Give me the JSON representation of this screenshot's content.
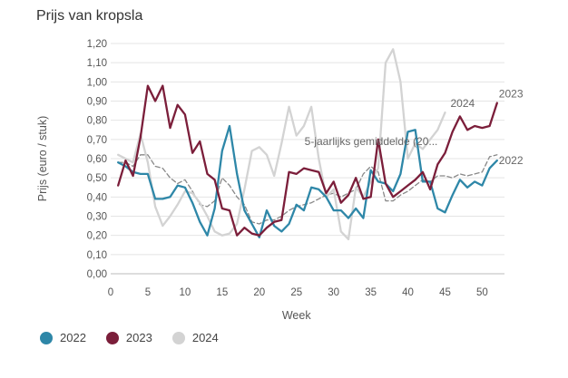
{
  "title": "Prijs van kropsla",
  "chart_data": {
    "type": "line",
    "title": "Prijs van kropsla",
    "xlabel": "Week",
    "ylabel": "Prijs (euro / stuk)",
    "xlim": [
      0,
      53
    ],
    "ylim": [
      0,
      1.2
    ],
    "xticks": [
      0,
      5,
      10,
      15,
      20,
      25,
      30,
      35,
      40,
      45,
      50
    ],
    "yticks": [
      "0,00",
      "0,10",
      "0,20",
      "0,30",
      "0,40",
      "0,50",
      "0,60",
      "0,70",
      "0,80",
      "0,90",
      "1,00",
      "1,10",
      "1,20"
    ],
    "grid": true,
    "legend_position": "bottom-left",
    "series": [
      {
        "name": "2022",
        "color": "#2e87a8",
        "dash": false,
        "x": [
          1,
          2,
          3,
          4,
          5,
          6,
          7,
          8,
          9,
          10,
          11,
          12,
          13,
          14,
          15,
          16,
          17,
          18,
          19,
          20,
          21,
          22,
          23,
          24,
          25,
          26,
          27,
          28,
          29,
          30,
          31,
          32,
          33,
          34,
          35,
          36,
          37,
          38,
          39,
          40,
          41,
          42,
          43,
          44,
          45,
          46,
          47,
          48,
          49,
          50,
          51,
          52
        ],
        "y": [
          0.58,
          0.56,
          0.53,
          0.52,
          0.52,
          0.39,
          0.39,
          0.4,
          0.46,
          0.45,
          0.37,
          0.27,
          0.2,
          0.34,
          0.64,
          0.77,
          0.52,
          0.33,
          0.26,
          0.19,
          0.33,
          0.25,
          0.22,
          0.26,
          0.36,
          0.33,
          0.45,
          0.44,
          0.4,
          0.33,
          0.33,
          0.29,
          0.34,
          0.29,
          0.54,
          0.48,
          0.47,
          0.43,
          0.52,
          0.74,
          0.75,
          0.48,
          0.48,
          0.34,
          0.32,
          0.41,
          0.49,
          0.45,
          0.48,
          0.46,
          0.55,
          0.59
        ]
      },
      {
        "name": "2023",
        "color": "#7b1e3a",
        "dash": false,
        "x": [
          1,
          2,
          3,
          4,
          5,
          6,
          7,
          8,
          9,
          10,
          11,
          12,
          13,
          14,
          15,
          16,
          17,
          18,
          19,
          20,
          21,
          22,
          23,
          24,
          25,
          26,
          27,
          28,
          29,
          30,
          31,
          32,
          33,
          34,
          35,
          36,
          37,
          38,
          39,
          40,
          41,
          42,
          43,
          44,
          45,
          46,
          47,
          48,
          49,
          50,
          51,
          52
        ],
        "y": [
          0.46,
          0.59,
          0.51,
          0.71,
          0.98,
          0.9,
          0.98,
          0.76,
          0.88,
          0.83,
          0.63,
          0.69,
          0.52,
          0.49,
          0.34,
          0.33,
          0.2,
          0.24,
          0.21,
          0.2,
          0.24,
          0.27,
          0.28,
          0.53,
          0.52,
          0.55,
          0.54,
          0.53,
          0.42,
          0.48,
          0.37,
          0.41,
          0.5,
          0.39,
          0.4,
          0.7,
          0.47,
          0.4,
          0.43,
          0.46,
          0.49,
          0.53,
          0.44,
          0.57,
          0.63,
          0.74,
          0.82,
          0.75,
          0.77,
          0.76,
          0.77,
          0.89
        ]
      },
      {
        "name": "2024",
        "color": "#d3d3d3",
        "dash": false,
        "end_label": "2024",
        "x": [
          1,
          2,
          3,
          4,
          5,
          6,
          7,
          8,
          9,
          10,
          11,
          12,
          13,
          14,
          15,
          16,
          17,
          18,
          19,
          20,
          21,
          22,
          23,
          24,
          25,
          26,
          27,
          28,
          29,
          30,
          31,
          32,
          33,
          34,
          35,
          36,
          37,
          38,
          39,
          40,
          41,
          42,
          43,
          44,
          45
        ],
        "y": [
          0.62,
          0.6,
          0.58,
          0.73,
          0.58,
          0.35,
          0.25,
          0.3,
          0.36,
          0.43,
          0.42,
          0.37,
          0.3,
          0.22,
          0.2,
          0.21,
          0.26,
          0.44,
          0.64,
          0.66,
          0.62,
          0.51,
          0.68,
          0.87,
          0.72,
          0.77,
          0.87,
          0.6,
          0.4,
          0.44,
          0.22,
          0.18,
          0.45,
          0.4,
          0.48,
          0.55,
          1.1,
          1.17,
          1.0,
          0.6,
          0.68,
          0.65,
          0.7,
          0.75,
          0.84
        ]
      },
      {
        "name": "5-jaarlijks gemiddelde (20...",
        "color": "#888888",
        "dash": true,
        "x": [
          1,
          2,
          3,
          4,
          5,
          6,
          7,
          8,
          9,
          10,
          11,
          12,
          13,
          14,
          15,
          16,
          17,
          18,
          19,
          20,
          21,
          22,
          23,
          24,
          25,
          26,
          27,
          28,
          29,
          30,
          31,
          32,
          33,
          34,
          35,
          36,
          37,
          38,
          39,
          40,
          41,
          42,
          43,
          44,
          45,
          46,
          47,
          48,
          49,
          50,
          51,
          52
        ],
        "y": [
          0.58,
          0.58,
          0.56,
          0.62,
          0.62,
          0.56,
          0.55,
          0.5,
          0.47,
          0.49,
          0.43,
          0.36,
          0.35,
          0.38,
          0.5,
          0.46,
          0.4,
          0.36,
          0.27,
          0.26,
          0.28,
          0.28,
          0.3,
          0.33,
          0.35,
          0.36,
          0.37,
          0.39,
          0.41,
          0.42,
          0.4,
          0.42,
          0.44,
          0.52,
          0.56,
          0.53,
          0.38,
          0.38,
          0.41,
          0.43,
          0.46,
          0.49,
          0.48,
          0.51,
          0.51,
          0.5,
          0.52,
          0.51,
          0.52,
          0.53,
          0.61,
          0.62
        ]
      }
    ],
    "end_labels": [
      {
        "series": "2023",
        "text": "2023"
      },
      {
        "series": "2024",
        "text": "2024"
      },
      {
        "series": "5-jaarlijks gemiddelde (20...",
        "text": "5-jaarlijks gemiddelde (20..."
      },
      {
        "series": "2022",
        "text": "2022"
      }
    ]
  },
  "legend": [
    {
      "label": "2022",
      "color": "#2e87a8"
    },
    {
      "label": "2023",
      "color": "#7b1e3a"
    },
    {
      "label": "2024",
      "color": "#d3d3d3"
    }
  ]
}
